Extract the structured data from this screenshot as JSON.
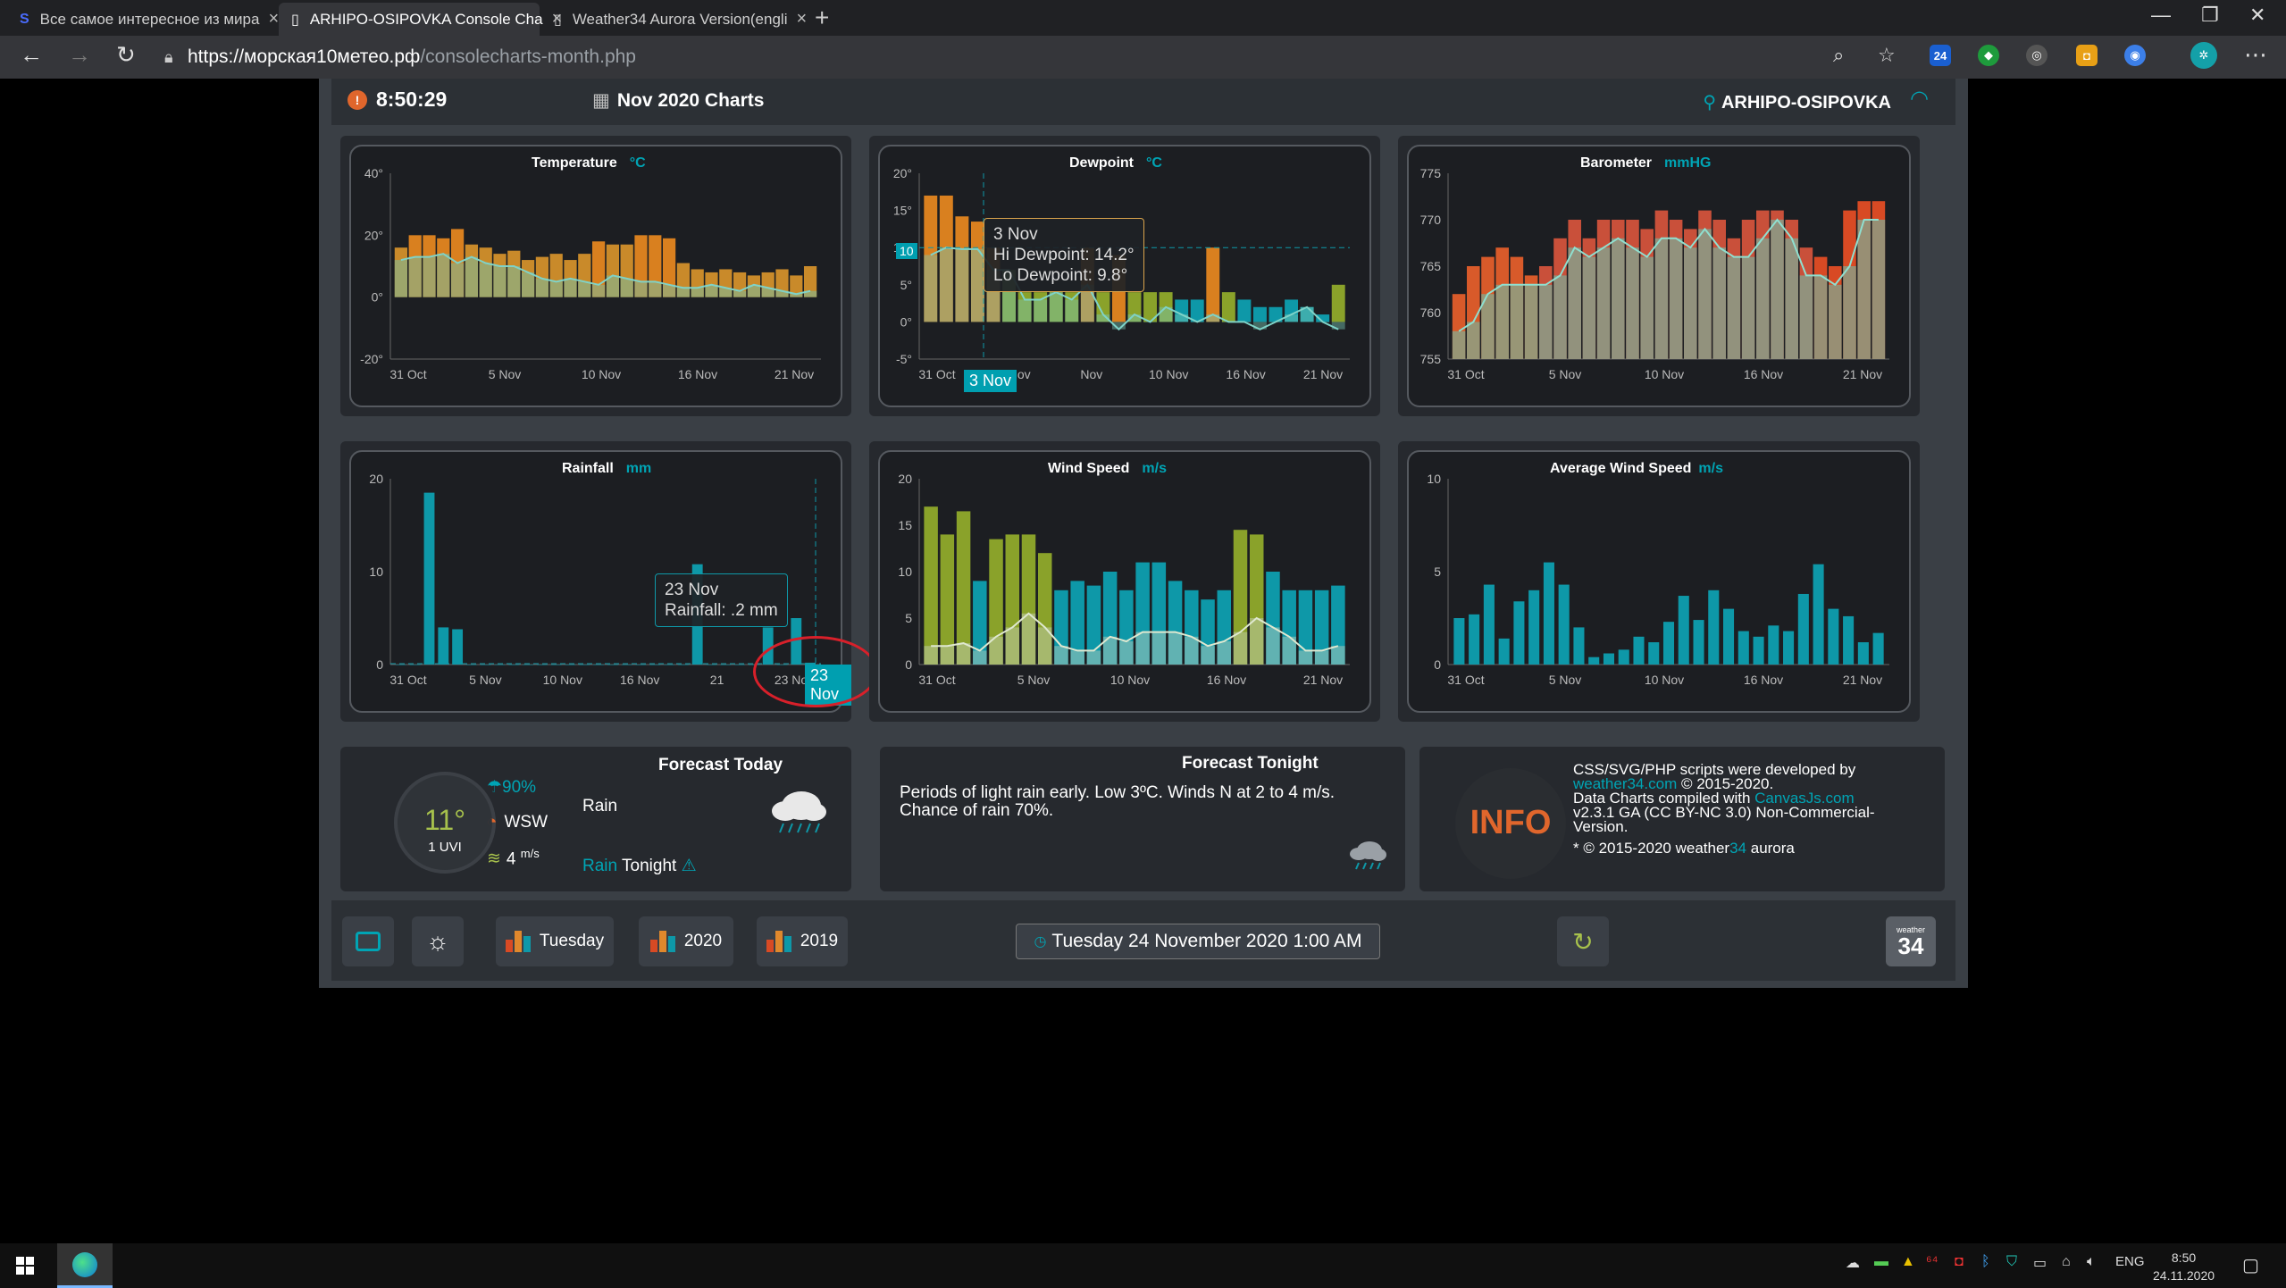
{
  "browser": {
    "tabs": [
      {
        "title": "Все самое интересное из мира",
        "favicon": "s-icon",
        "active": false
      },
      {
        "title": "ARHIPO-OSIPOVKA Console Cha",
        "favicon": "page-icon",
        "active": true
      },
      {
        "title": "Weather34 Aurora Version(engli",
        "favicon": "page-icon",
        "active": false
      }
    ],
    "url_host": "https://морская10метео.рф",
    "url_path": "/consolecharts-month.php"
  },
  "header": {
    "time": "8:50:29",
    "title": "Nov 2020 Charts",
    "station": "ARHIPO-OSIPOVKA"
  },
  "charts": {
    "temperature": {
      "title": "Temperature",
      "unit": "°C"
    },
    "dewpoint": {
      "title": "Dewpoint",
      "unit": "°C"
    },
    "barometer": {
      "title": "Barometer",
      "unit": "mmHG"
    },
    "rainfall": {
      "title": "Rainfall",
      "unit": "mm"
    },
    "windspeed": {
      "title": "Wind Speed",
      "unit": "m/s"
    },
    "avgwind": {
      "title": "Average Wind Speed",
      "unit": "m/s"
    }
  },
  "tooltips": {
    "dewpoint": {
      "line1": "3 Nov",
      "line2": "Hi Dewpoint:  14.2°",
      "line3": "Lo Dewpoint:  9.8°",
      "xlabel": "3 Nov",
      "ylabel": "10"
    },
    "rainfall": {
      "line1": "23 Nov",
      "line2": "Rainfall:  .2 mm",
      "xlabel": "23 Nov"
    }
  },
  "chart_data": [
    {
      "type": "bar",
      "title": "Temperature",
      "unit": "°C",
      "x_ticks": [
        "31 Oct",
        "5 Nov",
        "10 Nov",
        "16 Nov",
        "21 Nov"
      ],
      "y_ticks": [
        "40°",
        "20°",
        "0°",
        "-20°"
      ],
      "ylim": [
        -20,
        40
      ],
      "series": [
        {
          "name": "Hi",
          "values": [
            16,
            20,
            20,
            19,
            22,
            17,
            16,
            14,
            15,
            12,
            13,
            14,
            12,
            14,
            18,
            17,
            17,
            20,
            20,
            19,
            11,
            9,
            8,
            9,
            8,
            7,
            8,
            9,
            7,
            10
          ]
        },
        {
          "name": "Lo",
          "values": [
            12,
            13,
            13,
            14,
            11,
            13,
            11,
            10,
            10,
            8,
            6,
            5,
            6,
            5,
            4,
            7,
            6,
            5,
            5,
            4,
            3,
            3,
            4,
            3,
            2,
            4,
            3,
            2,
            1,
            2
          ]
        }
      ]
    },
    {
      "type": "bar",
      "title": "Dewpoint",
      "unit": "°C",
      "x_ticks": [
        "31 Oct",
        "3 Nov",
        "Nov",
        "10 Nov",
        "16 Nov",
        "21 Nov"
      ],
      "y_ticks": [
        "20°",
        "15°",
        "10°",
        "5°",
        "0°",
        "-5°"
      ],
      "ylim": [
        -5,
        20
      ],
      "series": [
        {
          "name": "Hi",
          "values": [
            17,
            17,
            14.2,
            13.5,
            10,
            7,
            4,
            4,
            4,
            4,
            10,
            4,
            9,
            4,
            4,
            4,
            3,
            3,
            10,
            4,
            3,
            2,
            2,
            3,
            2,
            1,
            5
          ]
        },
        {
          "name": "Lo",
          "values": [
            9,
            10,
            9.8,
            9.8,
            7,
            7,
            3,
            3,
            4,
            3,
            5,
            1,
            -1,
            1,
            0,
            2,
            1,
            0,
            1,
            0,
            0,
            -1,
            0,
            1,
            2,
            0,
            -1
          ]
        }
      ]
    },
    {
      "type": "bar",
      "title": "Barometer",
      "unit": "mmHG",
      "x_ticks": [
        "31 Oct",
        "5 Nov",
        "10 Nov",
        "16 Nov",
        "21 Nov"
      ],
      "y_ticks": [
        "775",
        "770",
        "765",
        "760",
        "755"
      ],
      "ylim": [
        755,
        775
      ],
      "series": [
        {
          "name": "Hi",
          "values": [
            762,
            765,
            766,
            767,
            766,
            764,
            765,
            768,
            770,
            768,
            770,
            770,
            770,
            769,
            771,
            770,
            769,
            771,
            770,
            768,
            770,
            771,
            771,
            770,
            767,
            766,
            765,
            771,
            772,
            772
          ]
        },
        {
          "name": "Lo",
          "values": [
            758,
            759,
            762,
            763,
            763,
            763,
            763,
            764,
            767,
            766,
            767,
            768,
            767,
            766,
            768,
            768,
            767,
            769,
            767,
            766,
            766,
            768,
            770,
            768,
            764,
            764,
            763,
            765,
            770,
            770
          ]
        }
      ]
    },
    {
      "type": "bar",
      "title": "Rainfall",
      "unit": "mm",
      "x_ticks": [
        "31 Oct",
        "5 Nov",
        "10 Nov",
        "16 Nov",
        "21",
        "23 Nov"
      ],
      "y_ticks": [
        "20",
        "10",
        "0"
      ],
      "ylim": [
        0,
        20
      ],
      "values": [
        0,
        0,
        18.5,
        4,
        3.8,
        0,
        0,
        0,
        0,
        0,
        0,
        0,
        0,
        0,
        0,
        0,
        0,
        0,
        0,
        0,
        0,
        10.8,
        0,
        0,
        0,
        0,
        4,
        0,
        5,
        0.2
      ]
    },
    {
      "type": "bar",
      "title": "Wind Speed",
      "unit": "m/s",
      "x_ticks": [
        "31 Oct",
        "5 Nov",
        "10 Nov",
        "16 Nov",
        "21 Nov"
      ],
      "y_ticks": [
        "20",
        "15",
        "10",
        "5",
        "0"
      ],
      "ylim": [
        0,
        20
      ],
      "series": [
        {
          "name": "Gust",
          "values": [
            17,
            14,
            16.5,
            9,
            13.5,
            14,
            14,
            12,
            8,
            9,
            8.5,
            10,
            8,
            11,
            11,
            9,
            8,
            7,
            8,
            14.5,
            14,
            10,
            8,
            8,
            8,
            8.5
          ]
        },
        {
          "name": "Avg",
          "values": [
            2,
            2,
            2.3,
            1.5,
            3,
            4,
            5.5,
            4,
            2,
            1.5,
            1.5,
            3,
            2.5,
            3.5,
            3.5,
            3.5,
            3,
            2,
            2.5,
            3.5,
            5,
            4,
            3,
            1.5,
            1.5,
            2
          ]
        }
      ]
    },
    {
      "type": "bar",
      "title": "Average Wind Speed",
      "unit": "m/s",
      "x_ticks": [
        "31 Oct",
        "5 Nov",
        "10 Nov",
        "16 Nov",
        "21 Nov"
      ],
      "y_ticks": [
        "10",
        "5",
        "0"
      ],
      "ylim": [
        0,
        10
      ],
      "values": [
        2.5,
        2.7,
        4.3,
        1.4,
        3.4,
        4,
        5.5,
        4.3,
        2,
        0.4,
        0.6,
        0.8,
        1.5,
        1.2,
        2.3,
        3.7,
        2.4,
        4,
        3,
        1.8,
        1.5,
        2.1,
        1.8,
        3.8,
        5.4,
        3,
        2.6,
        1.2,
        1.7
      ]
    }
  ],
  "forecast_today": {
    "title": "Forecast Today",
    "temp": "11°",
    "uvi_value": "1",
    "uvi_label": "UVI",
    "rain_chance": "90%",
    "wind_dir": "WSW",
    "wind_speed": "4",
    "wind_unit": "m/s",
    "condition": "Rain",
    "tonight_word": "Rain",
    "tonight_label": "Tonight"
  },
  "forecast_tonight": {
    "title": "Forecast Tonight",
    "text": "Periods of light rain early. Low 3ºC. Winds N at 2 to 4 m/s. Chance of rain 70%."
  },
  "info": {
    "badge": "INFO",
    "line1": "CSS/SVG/PHP scripts were developed by",
    "link1": "weather34.com",
    "line1b": " © 2015-2020.",
    "line2": "Data Charts compiled with ",
    "link2": "CanvasJs.com",
    "line3": "v2.3.1 GA (CC BY-NC 3.0) Non-Commercial-Version.",
    "line4a": "* © 2015-2020 weather",
    "line4b": "34",
    "line4c": " aurora"
  },
  "bottombar": {
    "btn_tuesday": "Tuesday",
    "btn_2020": "2020",
    "btn_2019": "2019",
    "date": "Tuesday 24 November 2020 1:00 AM",
    "logo_top": "weather",
    "logo_num": "34"
  },
  "taskbar": {
    "lang": "ENG",
    "time": "8:50",
    "date": "24.11.2020"
  },
  "colors": {
    "orange": "#d9801f",
    "green": "#8aa22a",
    "teal": "#0e98a8",
    "red": "#d84a24",
    "accent": "#00a4b4"
  }
}
